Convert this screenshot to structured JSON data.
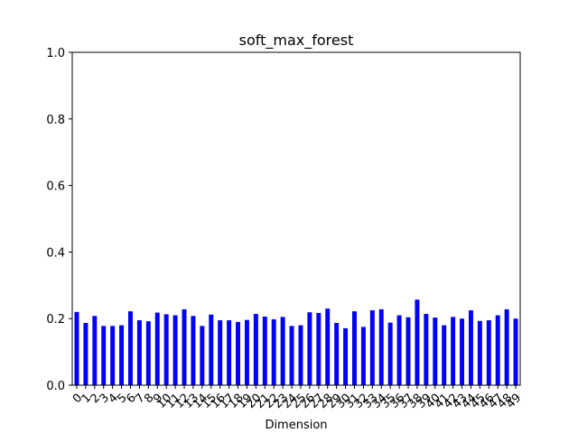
{
  "chart_data": {
    "type": "bar",
    "title": "soft_max_forest",
    "xlabel": "Dimension",
    "ylabel": "",
    "ylim": [
      0.0,
      1.0
    ],
    "yticks": [
      0.0,
      0.2,
      0.4,
      0.6,
      0.8,
      1.0
    ],
    "ytick_labels": [
      "0.0",
      "0.2",
      "0.4",
      "0.6",
      "0.8",
      "1.0"
    ],
    "bar_color": "#0000ff",
    "grid": false,
    "legend": "none",
    "categories": [
      "0",
      "1",
      "2",
      "3",
      "4",
      "5",
      "6",
      "7",
      "8",
      "9",
      "10",
      "11",
      "12",
      "13",
      "14",
      "15",
      "16",
      "17",
      "18",
      "19",
      "20",
      "21",
      "22",
      "23",
      "24",
      "25",
      "26",
      "27",
      "28",
      "29",
      "30",
      "31",
      "32",
      "33",
      "34",
      "35",
      "36",
      "37",
      "38",
      "39",
      "40",
      "41",
      "42",
      "43",
      "44",
      "45",
      "46",
      "47",
      "48",
      "49"
    ],
    "values": [
      0.22,
      0.187,
      0.208,
      0.178,
      0.178,
      0.18,
      0.222,
      0.195,
      0.192,
      0.218,
      0.213,
      0.21,
      0.228,
      0.208,
      0.178,
      0.212,
      0.195,
      0.195,
      0.19,
      0.196,
      0.214,
      0.206,
      0.198,
      0.205,
      0.178,
      0.18,
      0.219,
      0.217,
      0.23,
      0.187,
      0.171,
      0.222,
      0.175,
      0.225,
      0.228,
      0.188,
      0.21,
      0.204,
      0.257,
      0.214,
      0.203,
      0.18,
      0.205,
      0.2,
      0.225,
      0.193,
      0.195,
      0.21,
      0.228,
      0.2
    ]
  }
}
